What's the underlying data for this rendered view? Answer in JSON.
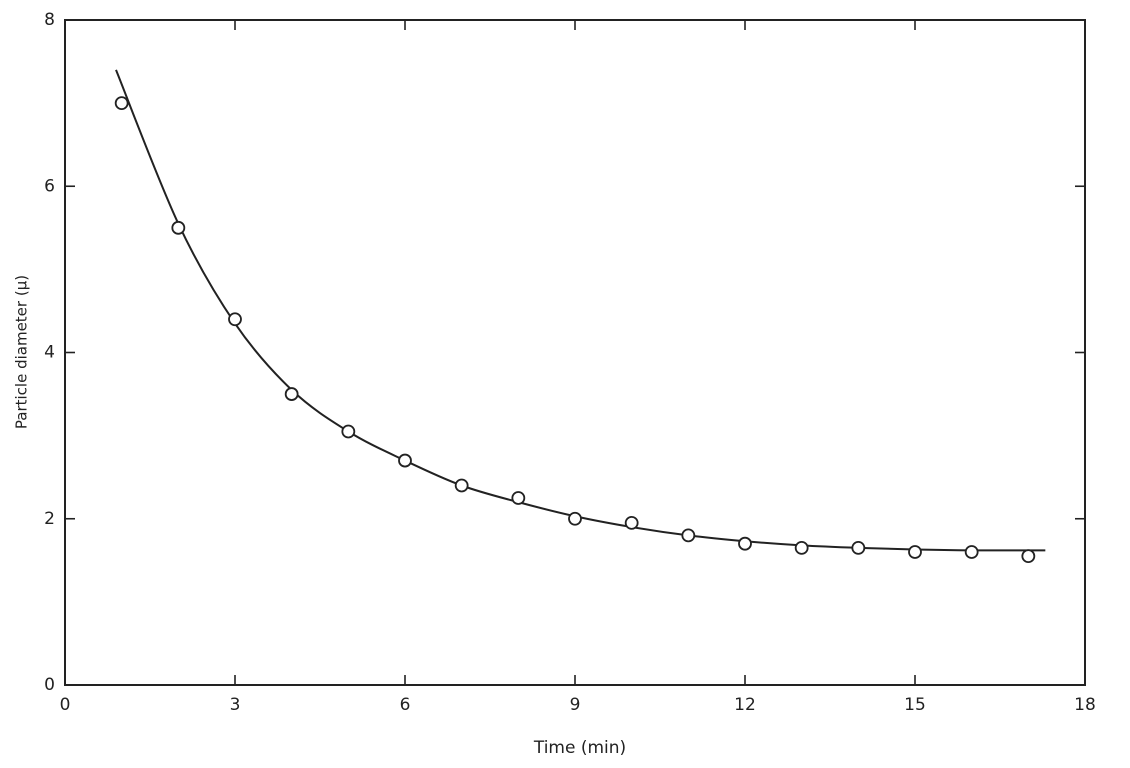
{
  "chart_data": {
    "type": "scatter",
    "x_label": "Time (min)",
    "y_label": "Particle diameter (μ)",
    "x": [
      1,
      2,
      3,
      4,
      5,
      6,
      7,
      8,
      9,
      10,
      11,
      12,
      13,
      14,
      15,
      16,
      17
    ],
    "values": [
      7.0,
      5.5,
      4.4,
      3.5,
      3.05,
      2.7,
      2.4,
      2.25,
      2.0,
      1.95,
      1.8,
      1.7,
      1.65,
      1.65,
      1.6,
      1.6,
      1.55
    ],
    "color": "#222222",
    "curve": {
      "x": [
        0.9,
        2,
        3,
        4,
        5,
        6,
        7,
        8,
        9,
        10,
        11,
        12,
        13,
        14,
        15,
        16,
        17.3
      ],
      "values": [
        7.4,
        5.55,
        4.35,
        3.55,
        3.05,
        2.7,
        2.4,
        2.2,
        2.03,
        1.9,
        1.8,
        1.73,
        1.68,
        1.65,
        1.63,
        1.62,
        1.62
      ]
    },
    "xlim": [
      0,
      18
    ],
    "xticks": [
      0,
      3,
      6,
      9,
      12,
      15,
      18
    ],
    "ylim": [
      0,
      8
    ],
    "yticks": [
      0,
      2,
      4,
      6,
      8
    ],
    "grid": false
  }
}
